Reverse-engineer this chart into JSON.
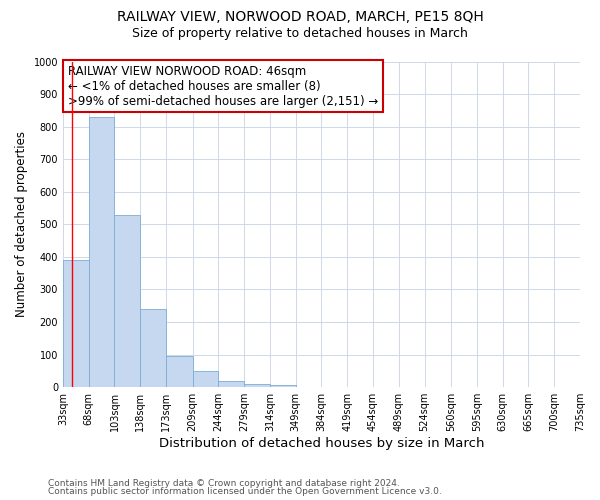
{
  "title": "RAILWAY VIEW, NORWOOD ROAD, MARCH, PE15 8QH",
  "subtitle": "Size of property relative to detached houses in March",
  "xlabel": "Distribution of detached houses by size in March",
  "ylabel": "Number of detached properties",
  "bar_color": "#c5d8ef",
  "bar_edge_color": "#7aadd4",
  "background_color": "#ffffff",
  "grid_color": "#d0d8e8",
  "annotation_box_edge": "#cc0000",
  "annotation_lines": [
    "RAILWAY VIEW NORWOOD ROAD: 46sqm",
    "← <1% of detached houses are smaller (8)",
    ">99% of semi-detached houses are larger (2,151) →"
  ],
  "property_line_x": 46,
  "bin_edges": [
    33,
    68,
    103,
    138,
    173,
    209,
    244,
    279,
    314,
    349,
    384,
    419,
    454,
    489,
    524,
    560,
    595,
    630,
    665,
    700,
    735
  ],
  "bar_heights": [
    390,
    830,
    530,
    240,
    95,
    50,
    20,
    10,
    8,
    0,
    0,
    0,
    0,
    0,
    0,
    0,
    0,
    0,
    0,
    0
  ],
  "tick_labels": [
    "33sqm",
    "68sqm",
    "103sqm",
    "138sqm",
    "173sqm",
    "209sqm",
    "244sqm",
    "279sqm",
    "314sqm",
    "349sqm",
    "384sqm",
    "419sqm",
    "454sqm",
    "489sqm",
    "524sqm",
    "560sqm",
    "595sqm",
    "630sqm",
    "665sqm",
    "700sqm",
    "735sqm"
  ],
  "ylim": [
    0,
    1000
  ],
  "yticks": [
    0,
    100,
    200,
    300,
    400,
    500,
    600,
    700,
    800,
    900,
    1000
  ],
  "footer_lines": [
    "Contains HM Land Registry data © Crown copyright and database right 2024.",
    "Contains public sector information licensed under the Open Government Licence v3.0."
  ],
  "title_fontsize": 10,
  "subtitle_fontsize": 9,
  "xlabel_fontsize": 9.5,
  "ylabel_fontsize": 8.5,
  "tick_fontsize": 7,
  "footer_fontsize": 6.5,
  "annotation_fontsize": 8.5
}
